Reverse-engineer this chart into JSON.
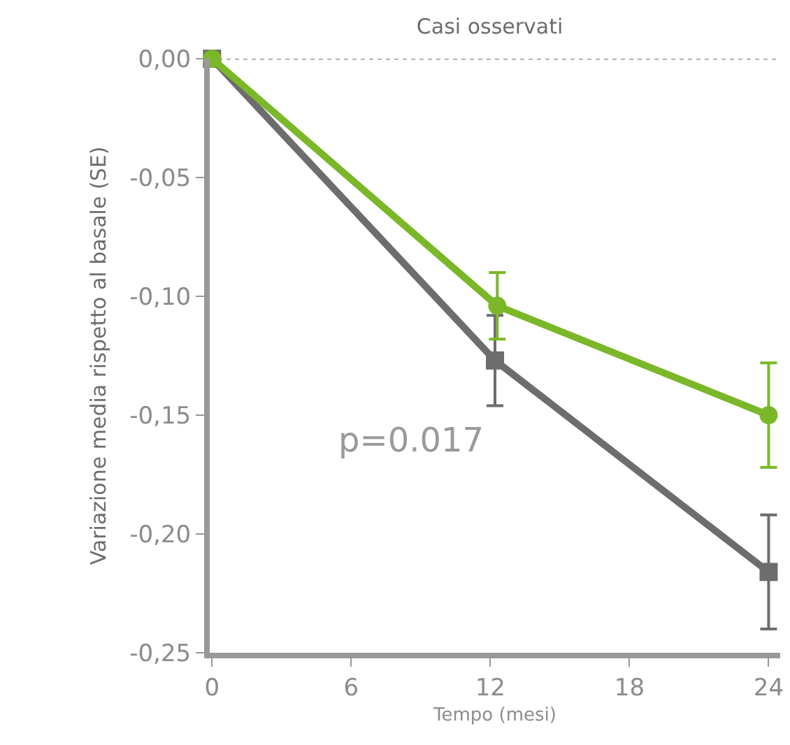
{
  "chart_data": {
    "type": "line",
    "title": "Casi osservati",
    "xlabel": "Tempo (mesi)",
    "ylabel": "Variazione media rispetto al basale (SE)",
    "xlim": [
      -0.1,
      24.5
    ],
    "xticks": [
      0,
      6,
      12,
      18,
      24
    ],
    "ylim": [
      -0.25,
      0
    ],
    "yticks": [
      {
        "value": 0,
        "label": "0,00"
      },
      {
        "value": -0.05,
        "label": "-0,05"
      },
      {
        "value": -0.1,
        "label": "-0,10"
      },
      {
        "value": -0.15,
        "label": "-0,15"
      },
      {
        "value": -0.2,
        "label": "-0,20"
      },
      {
        "value": -0.25,
        "label": "-0,25"
      }
    ],
    "grid": false,
    "series": [
      {
        "color": "#6d6d6d",
        "marker": "square",
        "x": [
          0,
          12.2,
          24
        ],
        "values": [
          0,
          -0.127,
          -0.216
        ],
        "errors": [
          null,
          0.019,
          0.024
        ]
      },
      {
        "color": "#7ab829",
        "marker": "circle",
        "x": [
          0,
          12.3,
          24
        ],
        "values": [
          0,
          -0.104,
          -0.15
        ],
        "errors": [
          null,
          0.014,
          0.022
        ]
      }
    ],
    "ref_lines": [
      {
        "axis": "y",
        "value": 0,
        "color": "#999999",
        "line_style": "dotted"
      }
    ],
    "annotations": [
      "p=0.017"
    ]
  }
}
